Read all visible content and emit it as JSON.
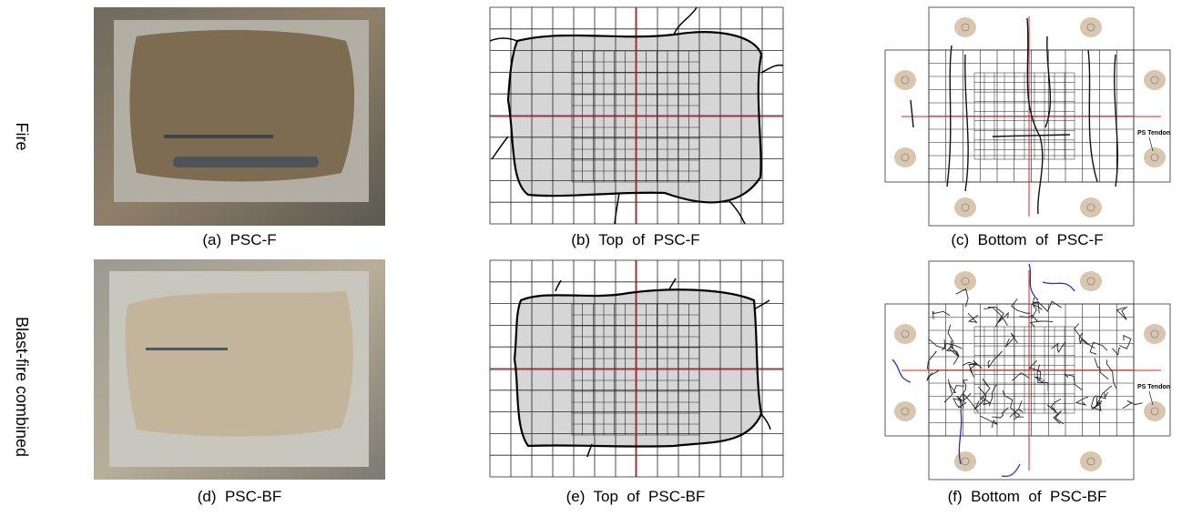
{
  "row_labels": [
    "Fire",
    "Blast-fire combined"
  ],
  "panels": [
    {
      "caption": "(a)  PSC-F"
    },
    {
      "caption": "(b)  Top  of  PSC-F"
    },
    {
      "caption": "(c)  Bottom  of  PSC-F",
      "tendon_label": "PS Tendon"
    },
    {
      "caption": "(d)  PSC-BF"
    },
    {
      "caption": "(e)  Top  of  PSC-BF"
    },
    {
      "caption": "(f)  Bottom  of  PSC-BF",
      "tendon_label": "PS Tendon"
    }
  ]
}
